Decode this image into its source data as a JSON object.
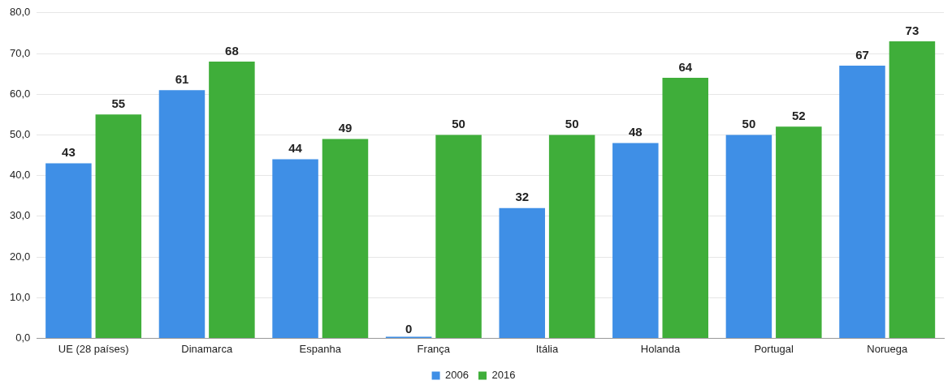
{
  "chart_data": {
    "type": "bar",
    "categories": [
      "UE (28 países)",
      "Dinamarca",
      "Espanha",
      "França",
      "Itália",
      "Holanda",
      "Portugal",
      "Noruega"
    ],
    "series": [
      {
        "name": "2006",
        "color": "#3f8fe6",
        "values": [
          43,
          61,
          44,
          0,
          32,
          48,
          50,
          67
        ]
      },
      {
        "name": "2016",
        "color": "#3fae3a",
        "values": [
          55,
          68,
          49,
          50,
          50,
          64,
          52,
          73
        ]
      }
    ],
    "ylim": [
      0,
      80
    ],
    "yticks": [
      {
        "value": 0,
        "label": "0,0"
      },
      {
        "value": 10,
        "label": "10,0"
      },
      {
        "value": 20,
        "label": "20,0"
      },
      {
        "value": 30,
        "label": "30,0"
      },
      {
        "value": 40,
        "label": "40,0"
      },
      {
        "value": 50,
        "label": "50,0"
      },
      {
        "value": 60,
        "label": "60,0"
      },
      {
        "value": 70,
        "label": "70,0"
      },
      {
        "value": 80,
        "label": "80,0"
      }
    ],
    "grid": "y",
    "legend": "bottom",
    "data_labels": true
  }
}
